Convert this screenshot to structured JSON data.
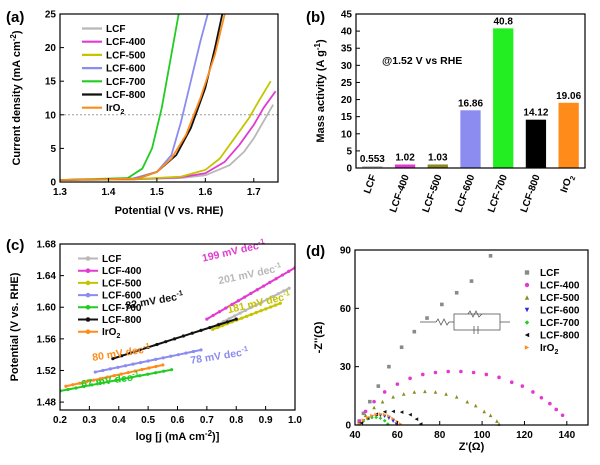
{
  "chart_data": [
    {
      "id": "a",
      "panel_label": "(a)",
      "type": "line",
      "xlabel": "Potential (V vs. RHE)",
      "ylabel": "Current density (mA cm",
      "ylabel_sup": "-2",
      "ylabel_end": ")",
      "xlim": [
        1.3,
        1.75
      ],
      "ylim": [
        0,
        25
      ],
      "xticks": [
        1.3,
        1.4,
        1.5,
        1.6,
        1.7
      ],
      "xtick_labels": [
        "1.3",
        "1.4",
        "1.5",
        "1.6",
        "1.7"
      ],
      "yticks": [
        0,
        5,
        10,
        15,
        20,
        25
      ],
      "ytick_labels": [
        "0",
        "5",
        "10",
        "15",
        "20",
        "25"
      ],
      "reference_line_y": 10,
      "legend_position": "top-left",
      "series": [
        {
          "name": "LCF",
          "color": "#b8b8b8",
          "x": [
            1.3,
            1.45,
            1.55,
            1.6,
            1.65,
            1.68,
            1.7,
            1.72,
            1.74
          ],
          "y": [
            0.3,
            0.4,
            0.6,
            1.0,
            2.5,
            4.5,
            6.5,
            9.0,
            11.5
          ]
        },
        {
          "name": "LCF-400",
          "color": "#e23ad0",
          "x": [
            1.3,
            1.45,
            1.55,
            1.6,
            1.64,
            1.67,
            1.7,
            1.72,
            1.745
          ],
          "y": [
            0.3,
            0.4,
            0.7,
            1.3,
            3.0,
            5.5,
            8.5,
            11.0,
            13.5
          ]
        },
        {
          "name": "LCF-500",
          "color": "#c4c400",
          "x": [
            1.3,
            1.45,
            1.55,
            1.6,
            1.63,
            1.66,
            1.69,
            1.71,
            1.735
          ],
          "y": [
            0.3,
            0.4,
            0.8,
            1.8,
            3.5,
            6.5,
            9.5,
            12.0,
            15.0
          ]
        },
        {
          "name": "LCF-600",
          "color": "#8c8cf0",
          "x": [
            1.3,
            1.45,
            1.5,
            1.53,
            1.55,
            1.57,
            1.59,
            1.605
          ],
          "y": [
            0.3,
            0.5,
            1.5,
            4.0,
            9.0,
            15.0,
            21.0,
            25.0
          ]
        },
        {
          "name": "LCF-700",
          "color": "#22cc22",
          "x": [
            1.3,
            1.44,
            1.47,
            1.49,
            1.51,
            1.53,
            1.545
          ],
          "y": [
            0.3,
            0.6,
            2.0,
            5.0,
            11.0,
            19.0,
            25.0
          ]
        },
        {
          "name": "LCF-800",
          "color": "#111111",
          "x": [
            1.3,
            1.46,
            1.5,
            1.54,
            1.57,
            1.6,
            1.62,
            1.635
          ],
          "y": [
            0.3,
            0.5,
            1.5,
            4.0,
            8.0,
            14.0,
            20.0,
            25.0
          ]
        },
        {
          "name": "IrO",
          "name_sub": "2",
          "color": "#ff8c1a",
          "x": [
            1.3,
            1.46,
            1.5,
            1.53,
            1.56,
            1.59,
            1.62,
            1.64
          ],
          "y": [
            0.3,
            0.5,
            1.5,
            3.5,
            7.0,
            12.5,
            19.0,
            25.0
          ]
        }
      ]
    },
    {
      "id": "b",
      "panel_label": "(b)",
      "type": "bar",
      "ylabel": "Mass activity (A g",
      "ylabel_sup": "-1",
      "ylabel_end": ")",
      "annotation": "@1.52 V vs RHE",
      "ylim": [
        0,
        45
      ],
      "yticks": [
        0,
        5,
        10,
        15,
        20,
        25,
        30,
        35,
        40,
        45
      ],
      "ytick_labels": [
        "0",
        "5",
        "10",
        "15",
        "20",
        "25",
        "30",
        "35",
        "40",
        "45"
      ],
      "categories": [
        "LCF",
        "LCF-400",
        "LCF-500",
        "LCF-600",
        "LCF-700",
        "LCF-800",
        "IrO"
      ],
      "last_category_sub": "2",
      "values": [
        0.553,
        1.02,
        1.03,
        16.86,
        40.8,
        14.12,
        19.06
      ],
      "value_labels": [
        "0.553",
        "1.02",
        "1.03",
        "16.86",
        "40.8",
        "14.12",
        "19.06"
      ],
      "colors": [
        "#bdbdbd",
        "#e23ad0",
        "#8b8b1e",
        "#8c8cf0",
        "#22ee22",
        "#000000",
        "#ff8c1a"
      ]
    },
    {
      "id": "c",
      "panel_label": "(c)",
      "type": "line",
      "xlabel": "log [j (mA cm",
      "xlabel_sup": "-2",
      "xlabel_end": ")]",
      "ylabel": "Potential (V vs. RHE)",
      "xlim": [
        0.2,
        1.0
      ],
      "ylim": [
        1.47,
        1.68
      ],
      "xticks": [
        0.2,
        0.3,
        0.4,
        0.5,
        0.6,
        0.7,
        0.8,
        0.9,
        1.0
      ],
      "xtick_labels": [
        "0.2",
        "0.3",
        "0.4",
        "0.5",
        "0.6",
        "0.7",
        "0.8",
        "0.9",
        "1.0"
      ],
      "yticks": [
        1.48,
        1.52,
        1.56,
        1.6,
        1.64,
        1.68
      ],
      "ytick_labels": [
        "1.48",
        "1.52",
        "1.56",
        "1.60",
        "1.64",
        "1.68"
      ],
      "legend_position": "top-left",
      "series": [
        {
          "name": "LCF",
          "color": "#b8b8b8",
          "x": [
            0.72,
            0.98
          ],
          "y": [
            1.575,
            1.624
          ],
          "slope_label": "201 mV dec",
          "slope_sup": "-1"
        },
        {
          "name": "LCF-400",
          "color": "#e23ad0",
          "x": [
            0.7,
            1.0
          ],
          "y": [
            1.585,
            1.65
          ],
          "slope_label": "199 mV dec",
          "slope_sup": "-1"
        },
        {
          "name": "LCF-500",
          "color": "#c4c400",
          "x": [
            0.72,
            0.95
          ],
          "y": [
            1.572,
            1.605
          ],
          "slope_label": "181 mV dec",
          "slope_sup": "-1"
        },
        {
          "name": "LCF-600",
          "color": "#8c8cf0",
          "x": [
            0.32,
            0.68
          ],
          "y": [
            1.518,
            1.546
          ],
          "slope_label": "78 mV dec",
          "slope_sup": "-1"
        },
        {
          "name": "LCF-700",
          "color": "#22cc22",
          "x": [
            0.2,
            0.58
          ],
          "y": [
            1.494,
            1.521
          ],
          "slope_label": "67 mV dec",
          "slope_sup": "-1"
        },
        {
          "name": "LCF-800",
          "color": "#111111",
          "x": [
            0.38,
            0.8
          ],
          "y": [
            1.535,
            1.585
          ],
          "slope_label": "82 mV dec",
          "slope_sup": "-1"
        },
        {
          "name": "IrO",
          "name_sub": "2",
          "color": "#ff8c1a",
          "x": [
            0.22,
            0.55
          ],
          "y": [
            1.5,
            1.527
          ],
          "slope_label": "80 mV dec",
          "slope_sup": "-1"
        }
      ]
    },
    {
      "id": "d",
      "panel_label": "(d)",
      "type": "scatter",
      "xlabel": "Z'(Ω)",
      "ylabel": "-Z''(Ω)",
      "xlim": [
        40,
        150
      ],
      "ylim": [
        0,
        90
      ],
      "xticks": [
        40,
        60,
        80,
        100,
        120,
        140
      ],
      "xtick_labels": [
        "40",
        "60",
        "80",
        "100",
        "120",
        "140"
      ],
      "yticks": [
        0,
        30,
        60,
        90
      ],
      "ytick_labels": [
        "0",
        "30",
        "60",
        "90"
      ],
      "legend_position": "right",
      "series": [
        {
          "name": "LCF",
          "color": "#8a8a8a",
          "shape": "square",
          "x": [
            42,
            44,
            47,
            51,
            56,
            62,
            68,
            74,
            81,
            88,
            95,
            104
          ],
          "y": [
            2,
            6,
            12,
            20,
            30,
            40,
            48,
            55,
            62,
            68,
            74,
            87
          ]
        },
        {
          "name": "LCF-400",
          "color": "#e23ad0",
          "shape": "circle",
          "x": [
            42,
            45,
            49,
            54,
            60,
            66,
            72,
            78,
            84,
            90,
            96,
            102,
            108,
            114,
            119,
            124,
            128,
            132,
            135,
            138
          ],
          "y": [
            2,
            7,
            12,
            17,
            21,
            24,
            26,
            27,
            27.5,
            27.5,
            27,
            26,
            24.5,
            22,
            20,
            17,
            14,
            11,
            8,
            5
          ]
        },
        {
          "name": "LCF-500",
          "color": "#8b8b1e",
          "shape": "triangle",
          "x": [
            42,
            45,
            49,
            53,
            58,
            63,
            68,
            73,
            78,
            83,
            88,
            93,
            97,
            101,
            104,
            107,
            108
          ],
          "y": [
            1,
            5,
            9,
            12,
            14.5,
            16,
            17,
            17.3,
            17,
            16,
            14.5,
            12,
            10,
            7,
            5,
            2,
            0.5
          ]
        },
        {
          "name": "LCF-600",
          "color": "#2b2bd6",
          "shape": "triangle-down",
          "x": [
            42,
            44,
            46,
            48,
            50,
            52,
            54,
            56,
            58,
            59.5
          ],
          "y": [
            0.5,
            2,
            3.3,
            4.3,
            4.8,
            4.9,
            4.5,
            3.5,
            2,
            0.5
          ]
        },
        {
          "name": "LCF-700",
          "color": "#22cc22",
          "shape": "diamond",
          "x": [
            42,
            44,
            46,
            48,
            50,
            52,
            54,
            55.5
          ],
          "y": [
            0.5,
            2,
            3.2,
            3.8,
            3.9,
            3.5,
            2.2,
            0.5
          ]
        },
        {
          "name": "LCF-800",
          "color": "#111111",
          "shape": "triangle-left",
          "x": [
            43,
            46,
            50,
            54,
            58,
            62,
            66,
            69,
            71
          ],
          "y": [
            1,
            3.5,
            5.5,
            6.8,
            7,
            6.6,
            5.3,
            3,
            0.5
          ]
        },
        {
          "name": "IrO",
          "name_sub": "2",
          "color": "#ff8c1a",
          "shape": "triangle-right",
          "x": [
            42,
            44,
            46,
            48,
            50,
            52,
            54,
            56,
            58,
            60,
            61.5
          ],
          "y": [
            0.5,
            2.5,
            3.8,
            4.8,
            5.4,
            5.6,
            5.3,
            4.6,
            3.3,
            1.8,
            0.5
          ]
        }
      ]
    }
  ]
}
